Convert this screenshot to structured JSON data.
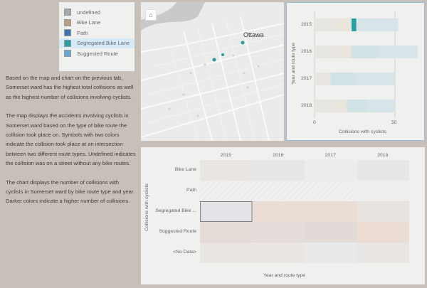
{
  "legend": {
    "items": [
      {
        "label": "undefined",
        "color": "#a8a8a8"
      },
      {
        "label": "Bike Lane",
        "color": "#b59f7e"
      },
      {
        "label": "Path",
        "color": "#3d73b0"
      },
      {
        "label": "Segregated Bike Lane",
        "color": "#27a0a4",
        "selected": true
      },
      {
        "label": "Suggested Route",
        "color": "#67a7d6"
      }
    ]
  },
  "description": {
    "paragraphs": [
      "Based on the map and chart on the previous tab, Somerset ward has the highest total collisions as well as the highest number of collisions involving cyclists.",
      "The map displays the accidents involving cyclists in Somerset ward based on the type of bike route the collision took place on. Symbols with two colors indicate the collision took place at an intersection between two different route types. Undefined indicates the collision was on a street without any bike routes.",
      "The chart displays the number of collisions with cyclists in Somerset ward by bike route type and year. Darker colors indicate a higher number of collisions."
    ]
  },
  "map": {
    "city_label": "Ottawa",
    "home_icon": "home-icon"
  },
  "chart_data": [
    {
      "type": "bar",
      "orientation": "horizontal",
      "stacked": true,
      "categories": [
        "2015",
        "2016",
        "2017",
        "2018"
      ],
      "xlabel": "Collisions with cyclists",
      "ylabel": "Year and route type",
      "xlim": [
        0,
        65
      ],
      "xticks": [
        "0",
        "50"
      ],
      "series": [
        {
          "name": "undefined",
          "color": "#e6e5e2",
          "values": [
            13,
            15,
            7,
            13
          ]
        },
        {
          "name": "Bike Lane",
          "color": "#e9e4dc",
          "values": [
            10,
            8,
            3,
            7
          ]
        },
        {
          "name": "Segregated Bike Lane",
          "color": "#cfe3e4",
          "values": [
            3,
            17,
            16,
            13
          ],
          "highlight_index": 0
        },
        {
          "name": "Suggested Route",
          "color": "#d7e4e9",
          "values": [
            26,
            24,
            24,
            17
          ]
        }
      ]
    },
    {
      "type": "heatmap",
      "columns": [
        "2015",
        "2016",
        "2017",
        "2018"
      ],
      "rows": [
        "Bike Lane",
        "Path",
        "Segregated Bike ...",
        "Suggested Route",
        "<No Data>"
      ],
      "xlabel": "Year and route type",
      "ylabel": "Collisions with cyclists",
      "cells": [
        [
          "#e9e5e2",
          "#e7e7e8",
          "#ededed",
          "#e7e7e8"
        ],
        [
          null,
          null,
          null,
          "#efefef"
        ],
        [
          "#e2e3e7",
          "#e9ddd5",
          "#e9ddd5",
          "#e7e3e0"
        ],
        [
          "#e3dbd6",
          "#e3dcd8",
          "#e1dad7",
          "#ebddd3"
        ],
        [
          "#e9e5e2",
          "#e9e6e3",
          "#e8e9ea",
          "#e9e5e2"
        ]
      ],
      "selected": {
        "row": 2,
        "col": 0
      }
    }
  ]
}
